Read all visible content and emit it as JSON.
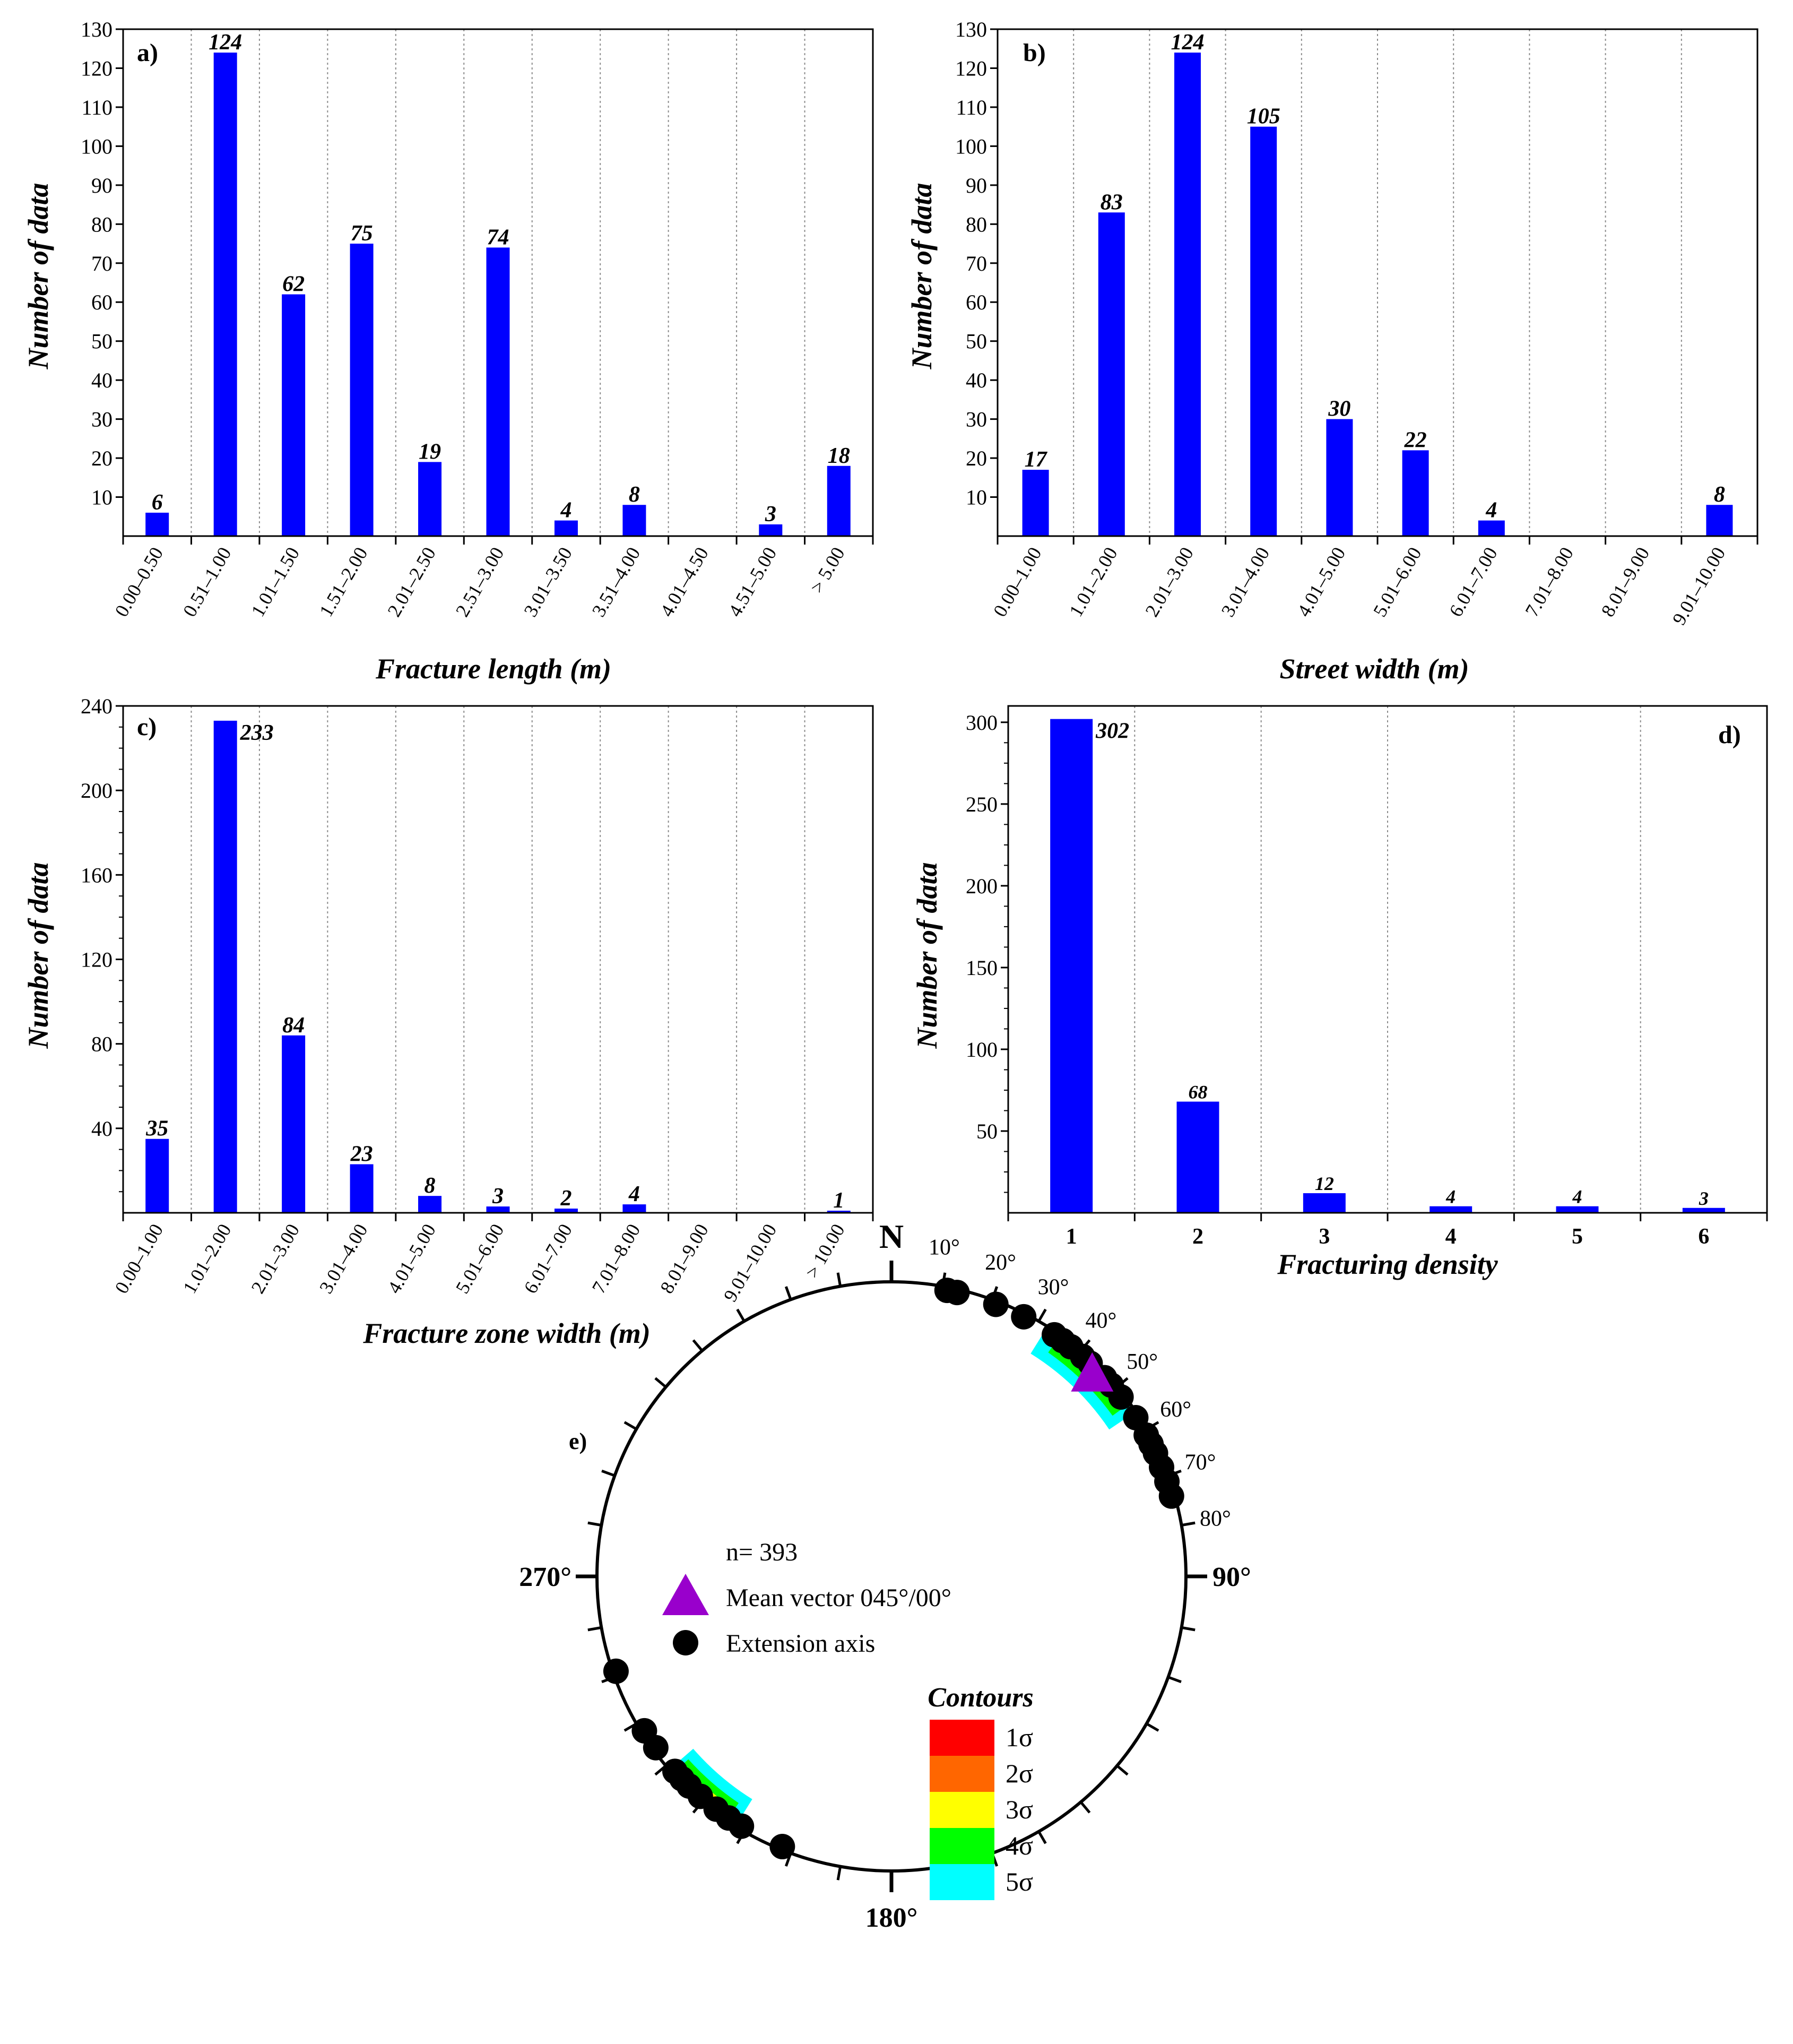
{
  "chart_data": [
    {
      "panel": "a)",
      "type": "bar",
      "xlabel": "Fracture length (m)",
      "ylabel": "Number of data",
      "ylim": [
        0,
        130
      ],
      "yticks": [
        10,
        20,
        30,
        40,
        50,
        60,
        70,
        80,
        90,
        100,
        110,
        120,
        130
      ],
      "categories": [
        "0.00–0.50",
        "0.51–1.00",
        "1.01–1.50",
        "1.51–2.00",
        "2.01–2.50",
        "2.51–3.00",
        "3.01–3.50",
        "3.51–4.00",
        "4.01–4.50",
        "4.51–5.00",
        "> 5.00"
      ],
      "values": [
        6,
        124,
        62,
        75,
        19,
        74,
        4,
        8,
        0,
        3,
        18
      ],
      "labels": [
        "6",
        "124",
        "62",
        "75",
        "19",
        "74",
        "4",
        "8",
        "",
        "3",
        "18"
      ],
      "color": "#0000ff"
    },
    {
      "panel": "b)",
      "type": "bar",
      "xlabel": "Street width (m)",
      "ylabel": "Number of data",
      "ylim": [
        0,
        130
      ],
      "yticks": [
        10,
        20,
        30,
        40,
        50,
        60,
        70,
        80,
        90,
        100,
        110,
        120,
        130
      ],
      "categories": [
        "0.00–1.00",
        "1.01–2.00",
        "2.01–3.00",
        "3.01–4.00",
        "4.01–5.00",
        "5.01–6.00",
        "6.01–7.00",
        "7.01–8.00",
        "8.01–9.00",
        "9.01–10.00"
      ],
      "values": [
        17,
        83,
        124,
        105,
        30,
        22,
        4,
        0,
        0,
        8
      ],
      "labels": [
        "17",
        "83",
        "124",
        "105",
        "30",
        "22",
        "4",
        "",
        "",
        "8"
      ],
      "color": "#0000ff"
    },
    {
      "panel": "c)",
      "type": "bar",
      "xlabel": "Fracture zone width (m)",
      "ylabel": "Number of data",
      "ylim": [
        0,
        240
      ],
      "yticks": [
        40,
        80,
        120,
        160,
        200,
        240
      ],
      "categories": [
        "0.00–1.00",
        "1.01–2.00",
        "2.01–3.00",
        "3.01–4.00",
        "4.01–5.00",
        "5.01–6.00",
        "6.01–7.00",
        "7.01–8.00",
        "8.01–9.00",
        "9.01–10.00",
        "> 10.00"
      ],
      "values": [
        35,
        233,
        84,
        23,
        8,
        3,
        2,
        4,
        0,
        0,
        1
      ],
      "labels": [
        "35",
        "233",
        "84",
        "23",
        "8",
        "3",
        "2",
        "4",
        "",
        "",
        "1"
      ],
      "color": "#0000ff"
    },
    {
      "panel": "d)",
      "type": "bar",
      "xlabel": "Fracturing density",
      "ylabel": "Number of data",
      "ylim": [
        0,
        310
      ],
      "yticks": [
        50,
        100,
        150,
        200,
        250,
        300
      ],
      "categories": [
        "1",
        "2",
        "3",
        "4",
        "5",
        "6"
      ],
      "values": [
        302,
        68,
        12,
        4,
        4,
        3
      ],
      "labels": [
        "302",
        "68",
        "12",
        "4",
        "4",
        "3"
      ],
      "color": "#0000ff"
    },
    {
      "panel": "e)",
      "type": "scatter",
      "projection": "stereonet",
      "n_label": "n= 393",
      "compass": {
        "north": "N",
        "east": "90°",
        "south": "180°",
        "west": "270°"
      },
      "azimuth_labels": [
        "10°",
        "20°",
        "30°",
        "40°",
        "50°",
        "60°",
        "70°",
        "80°"
      ],
      "mean_vector": {
        "label": "Mean vector 045°/00°",
        "azimuth": 45,
        "plunge": 0,
        "color": "#9900cc"
      },
      "extension_axis": {
        "label": "Extension axis",
        "azimuths": [
          11,
          13,
          21,
          27,
          34,
          36,
          38,
          41,
          43,
          47,
          49,
          52,
          57,
          61,
          63,
          65,
          68,
          71,
          74,
          202,
          211,
          214,
          217,
          221,
          224,
          226,
          228,
          234,
          238,
          251
        ],
        "plunge": 0
      },
      "contours": {
        "title": "Contours",
        "levels": [
          {
            "label": "1σ",
            "color": "#ff0000"
          },
          {
            "label": "2σ",
            "color": "#ff6600"
          },
          {
            "label": "3σ",
            "color": "#ffff00"
          },
          {
            "label": "4σ",
            "color": "#00ff00"
          },
          {
            "label": "5σ",
            "color": "#00ffff"
          }
        ]
      }
    }
  ]
}
